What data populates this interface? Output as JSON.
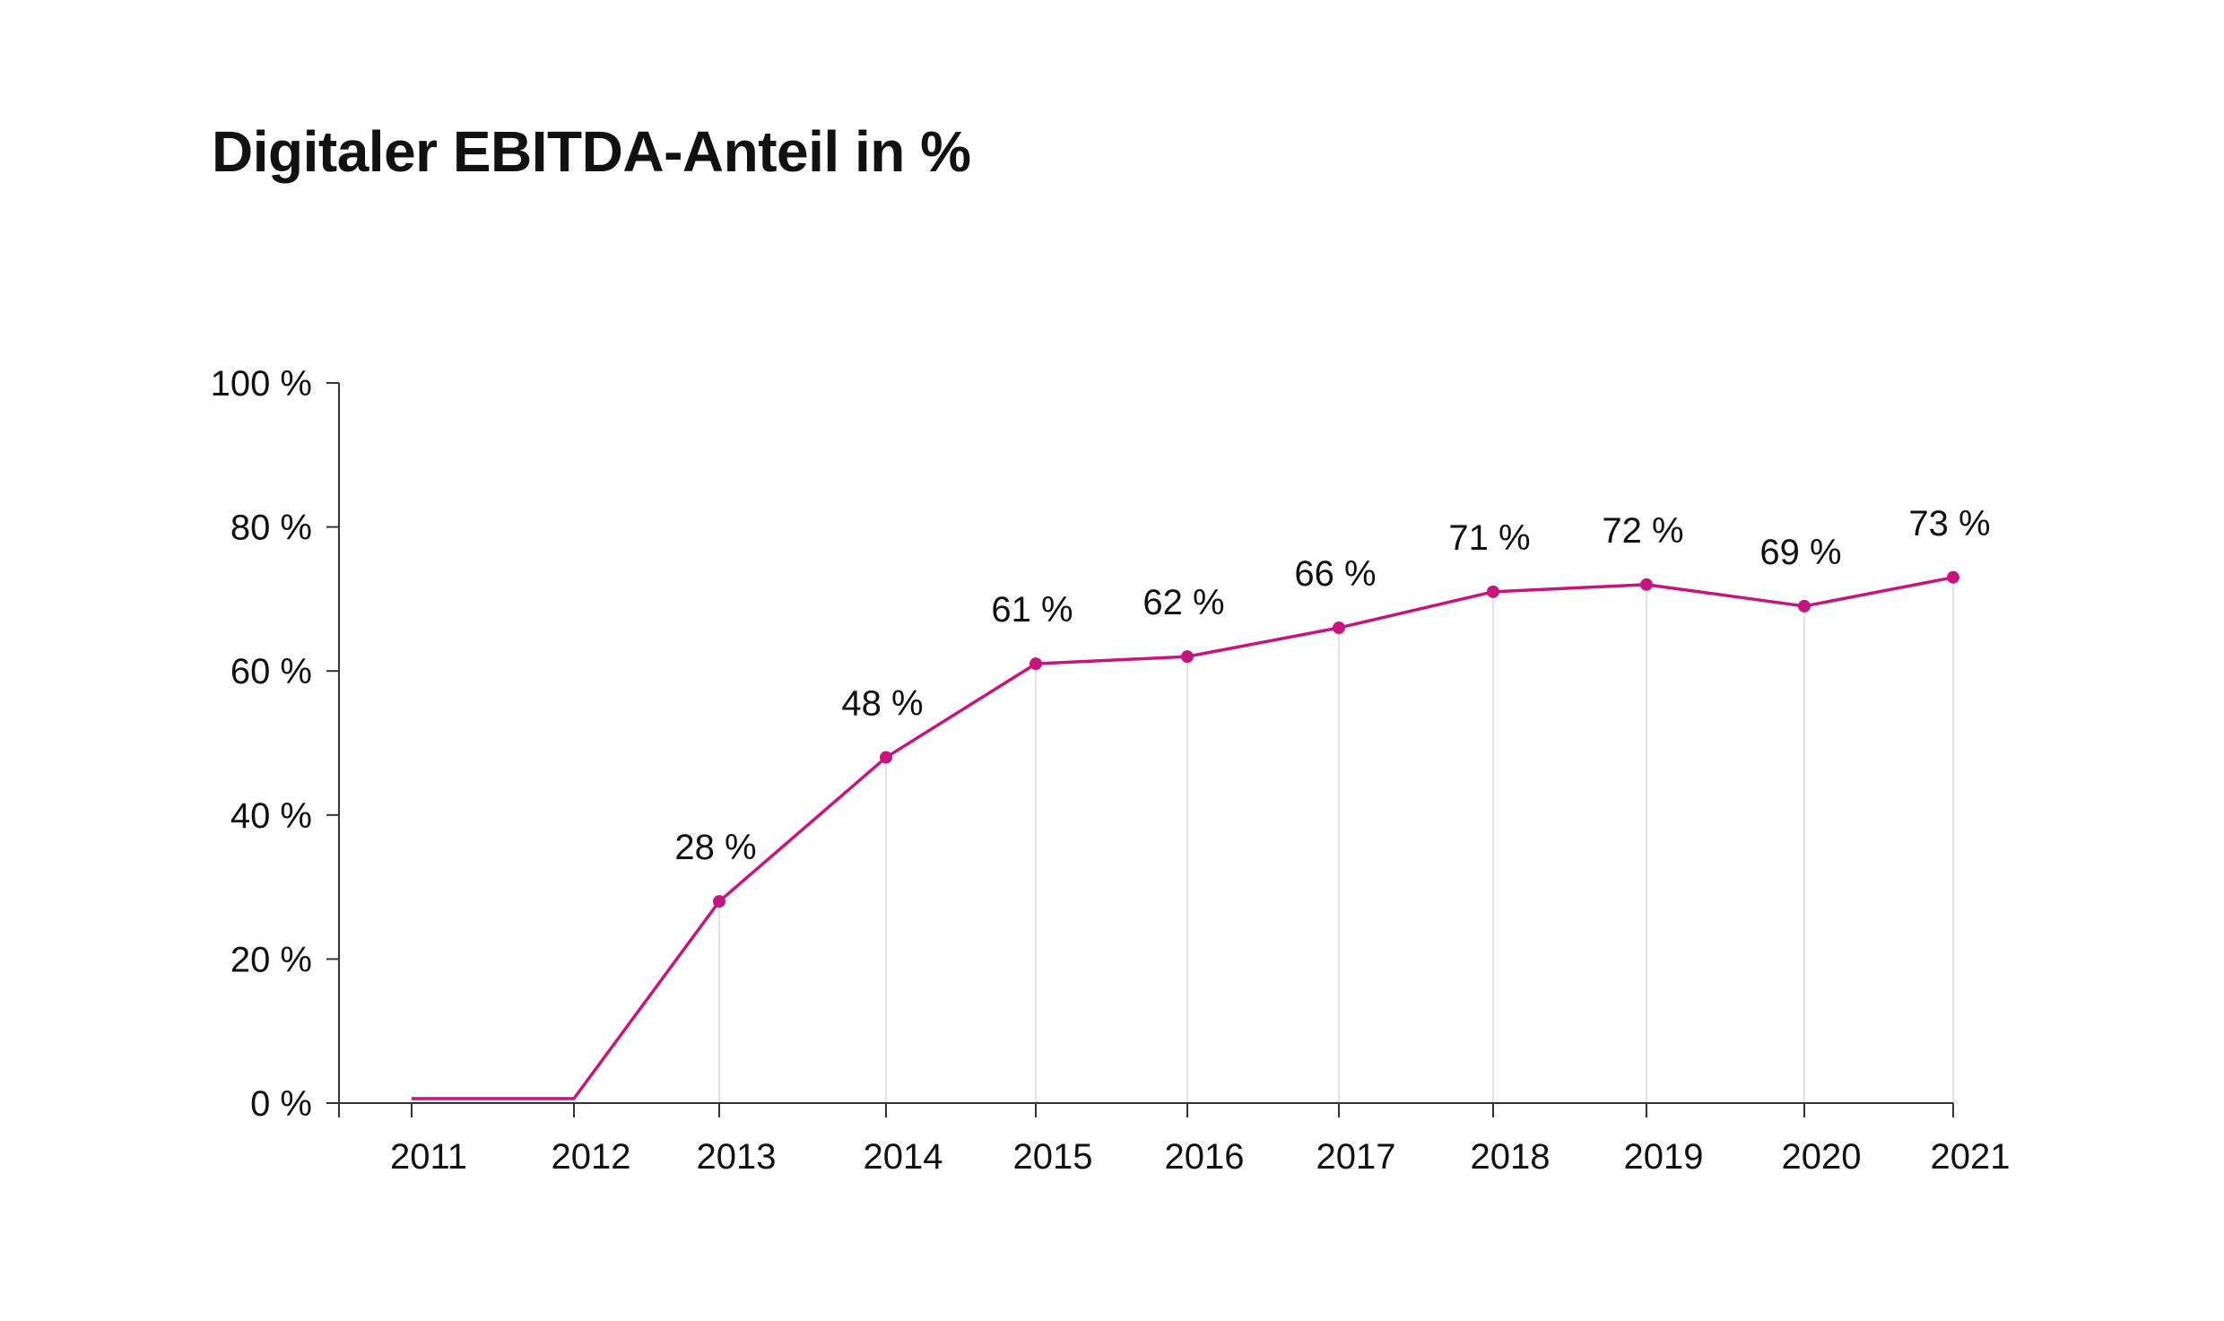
{
  "chart_data": {
    "type": "line",
    "title": "Digitaler EBITDA-Anteil in %",
    "xlabel": "",
    "ylabel": "",
    "categories": [
      "2011",
      "2012",
      "2013",
      "2014",
      "2015",
      "2016",
      "2017",
      "2018",
      "2019",
      "2020",
      "2021"
    ],
    "series": [
      {
        "values": [
          0,
          0,
          28,
          48,
          61,
          62,
          66,
          71,
          72,
          69,
          73
        ],
        "data_labels": [
          "",
          "",
          "28 %",
          "48 %",
          "61 %",
          "62 %",
          "66 %",
          "71 %",
          "72 %",
          "69 %",
          "73 %"
        ],
        "color": "#c6157f"
      }
    ],
    "ylim": [
      0,
      100
    ],
    "yticks": [
      0,
      20,
      40,
      60,
      80,
      100
    ],
    "ytick_labels": [
      "0 %",
      "20 %",
      "40 %",
      "60 %",
      "80 %",
      "100 %"
    ],
    "grid": "vertical-lines-at-points",
    "legend": "none"
  },
  "colors": {
    "line": "#c6157f",
    "axis": "#333333",
    "grid": "#e3e3e3",
    "text": "#111111"
  }
}
